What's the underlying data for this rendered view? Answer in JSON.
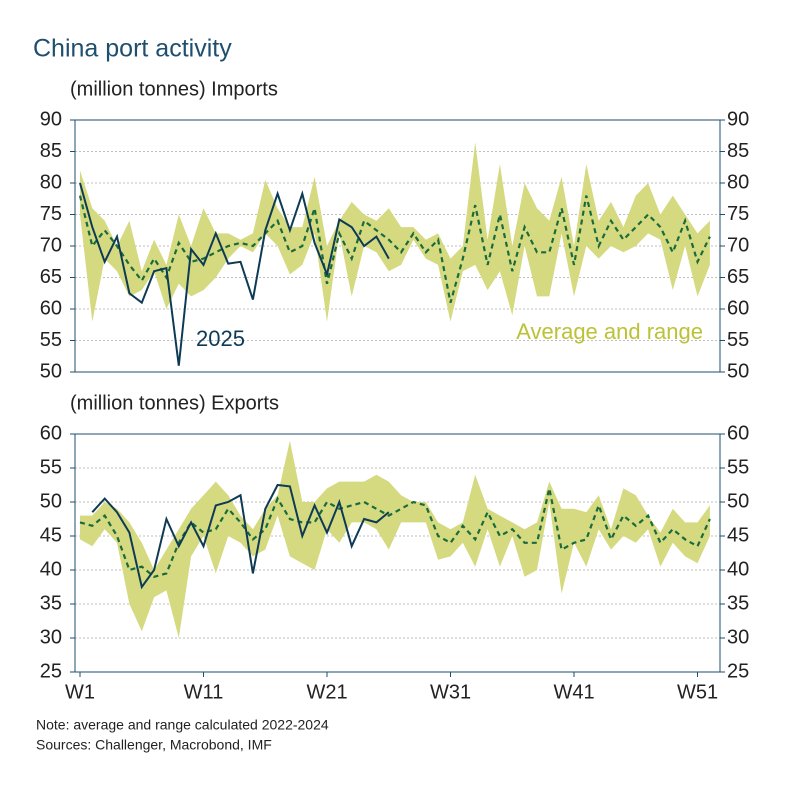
{
  "title": "China port activity",
  "note": "Note: average and range calculated 2022-2024",
  "sources": "Sources: Challenger, Macrobond, IMF",
  "chart_data": [
    {
      "type": "line",
      "ylabel": "(million tonnes) Imports",
      "ylim": [
        50,
        90
      ],
      "yticks": [
        50,
        55,
        60,
        65,
        70,
        75,
        80,
        85,
        90
      ],
      "y2lim": [
        50,
        90
      ],
      "y2ticks": [
        50,
        55,
        60,
        65,
        70,
        75,
        80,
        85,
        90
      ],
      "series": [
        {
          "name": "Average and range",
          "color": "#1a6b3c",
          "band_color": "#d5da80",
          "label_color": "#bcc236",
          "values": [
            78,
            70,
            72.5,
            70,
            67,
            64.5,
            68,
            65,
            70.5,
            67.5,
            68,
            69,
            70,
            70.5,
            70,
            72,
            74,
            69,
            70,
            76,
            64,
            72,
            68,
            74,
            72.5,
            71,
            69,
            72,
            69,
            71,
            61,
            68,
            76.5,
            67,
            75,
            66,
            73,
            69,
            69,
            76,
            67,
            78,
            70,
            74,
            71,
            73,
            75,
            73,
            69,
            74,
            67.5,
            71.5
          ],
          "low": [
            75,
            58,
            68,
            66,
            62,
            63,
            66,
            60,
            64,
            62,
            63,
            65,
            68,
            70,
            69,
            72,
            70,
            65.5,
            67,
            72,
            58,
            72,
            62,
            70,
            69,
            66,
            67,
            71,
            68,
            67,
            58,
            66,
            67,
            63,
            66,
            59,
            70,
            62,
            62,
            72,
            62,
            70,
            68,
            70,
            69,
            70,
            72,
            71,
            63,
            70,
            62,
            67
          ],
          "high": [
            82,
            76,
            74,
            70,
            74,
            66,
            71,
            67,
            75,
            70,
            76,
            72,
            72,
            71,
            72,
            80.5,
            76,
            73,
            73,
            81,
            70,
            74,
            77,
            75,
            74,
            76,
            73,
            73,
            71,
            72,
            68,
            70,
            86.5,
            71,
            83,
            70,
            80,
            76,
            74,
            81,
            70,
            83,
            74,
            77,
            73,
            78,
            80,
            75,
            78,
            75,
            72,
            74
          ]
        },
        {
          "name": "2025",
          "color": "#0d3b55",
          "values": [
            80,
            73,
            67.5,
            71.5,
            62.5,
            61,
            66,
            66.5,
            51,
            69.5,
            67,
            72,
            67.2,
            67.5,
            61.5,
            72.5,
            78.3,
            72.5,
            78.3,
            70.5,
            65.5,
            74.2,
            73,
            70,
            71.5,
            68,
            null,
            null,
            null,
            null,
            null,
            null,
            null,
            null,
            null,
            null,
            null,
            null,
            null,
            null,
            null,
            null,
            null,
            null,
            null,
            null,
            null,
            null,
            null,
            null,
            null,
            null
          ]
        }
      ]
    },
    {
      "type": "line",
      "ylabel": "(million tonnes) Exports",
      "categories": [
        "W1",
        null,
        null,
        null,
        null,
        null,
        null,
        null,
        null,
        null,
        "W11",
        null,
        null,
        null,
        null,
        null,
        null,
        null,
        null,
        null,
        "W21",
        null,
        null,
        null,
        null,
        null,
        null,
        null,
        null,
        null,
        "W31",
        null,
        null,
        null,
        null,
        null,
        null,
        null,
        null,
        null,
        "W41",
        null,
        null,
        null,
        null,
        null,
        null,
        null,
        null,
        null,
        "W51",
        null
      ],
      "ylim": [
        25,
        60
      ],
      "yticks": [
        25,
        30,
        35,
        40,
        45,
        50,
        55,
        60
      ],
      "y2lim": [
        25,
        60
      ],
      "y2ticks": [
        25,
        30,
        35,
        40,
        45,
        50,
        55,
        60
      ],
      "series": [
        {
          "color": "#1a6b3c",
          "band_color": "#d5da80",
          "values": [
            47,
            46.5,
            48,
            45,
            40,
            40.5,
            39,
            39.5,
            44,
            47,
            45.5,
            46,
            49,
            47,
            44.5,
            46,
            50.5,
            47.5,
            47,
            47,
            50,
            49,
            49.5,
            50,
            49,
            48,
            49,
            50,
            49.5,
            45,
            44,
            46.5,
            44.5,
            48.5,
            45,
            46,
            44,
            44,
            52,
            43,
            44,
            44.5,
            49.5,
            44.5,
            48,
            46.5,
            48,
            44,
            46,
            44.5,
            43.5,
            47.5
          ],
          "low": [
            44.5,
            43.5,
            46,
            44,
            35,
            31,
            36,
            37,
            30,
            42,
            45,
            39.5,
            45,
            44,
            42,
            43,
            48,
            42,
            41,
            40,
            46,
            44,
            47,
            47,
            46,
            43,
            47,
            47,
            47,
            41.5,
            42,
            44,
            40.5,
            46,
            40.5,
            45,
            39,
            40,
            50,
            36.5,
            44,
            40.5,
            46,
            43,
            45,
            44,
            46,
            40.5,
            44,
            42,
            41,
            45
          ],
          "high": [
            48,
            48,
            50,
            49,
            47,
            44,
            40,
            43,
            46,
            49,
            51,
            53,
            51,
            48,
            46,
            49,
            51,
            59,
            50,
            50,
            52,
            53,
            53,
            53,
            54,
            53,
            51,
            50,
            50,
            47,
            46,
            47,
            54,
            49,
            48,
            47,
            46,
            47,
            53,
            49,
            49,
            48.5,
            51,
            46,
            52,
            51,
            48,
            45.5,
            49,
            47,
            47,
            49.5
          ]
        },
        {
          "color": "#0d3b55",
          "values": [
            null,
            48.5,
            50.5,
            48.5,
            45.5,
            37.5,
            40,
            47.5,
            43.5,
            47,
            43.5,
            49.5,
            50,
            51,
            39.5,
            49,
            52.5,
            52.3,
            45,
            49.5,
            45.5,
            50,
            43.5,
            47.5,
            47,
            48.5,
            null,
            null,
            null,
            null,
            null,
            null,
            null,
            null,
            null,
            null,
            null,
            null,
            null,
            null,
            null,
            null,
            null,
            null,
            null,
            null,
            null,
            null,
            null,
            null,
            null,
            null
          ]
        }
      ]
    }
  ]
}
